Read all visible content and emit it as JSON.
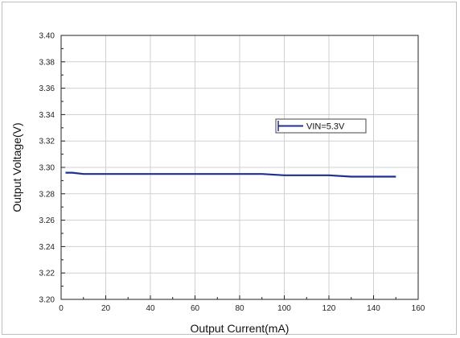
{
  "chart_data": {
    "type": "line",
    "xlabel": "Output Current(mA)",
    "ylabel": "Output Voltage(V)",
    "xlim": [
      0,
      160
    ],
    "ylim": [
      3.2,
      3.4
    ],
    "xticks": [
      "0",
      "20",
      "40",
      "60",
      "80",
      "100",
      "120",
      "140",
      "160"
    ],
    "yticks": [
      "3.20",
      "3.22",
      "3.24",
      "3.26",
      "3.28",
      "3.30",
      "3.32",
      "3.34",
      "3.36",
      "3.38",
      "3.40"
    ],
    "grid": true,
    "legend_position": "upper-right",
    "series": [
      {
        "name": "VIN=5.3V",
        "color": "#1f2f8f",
        "points": [
          [
            2,
            3.296
          ],
          [
            5,
            3.296
          ],
          [
            10,
            3.295
          ],
          [
            20,
            3.295
          ],
          [
            40,
            3.295
          ],
          [
            60,
            3.295
          ],
          [
            80,
            3.295
          ],
          [
            90,
            3.295
          ],
          [
            100,
            3.294
          ],
          [
            110,
            3.294
          ],
          [
            120,
            3.294
          ],
          [
            130,
            3.293
          ],
          [
            140,
            3.293
          ],
          [
            150,
            3.293
          ]
        ]
      }
    ]
  }
}
